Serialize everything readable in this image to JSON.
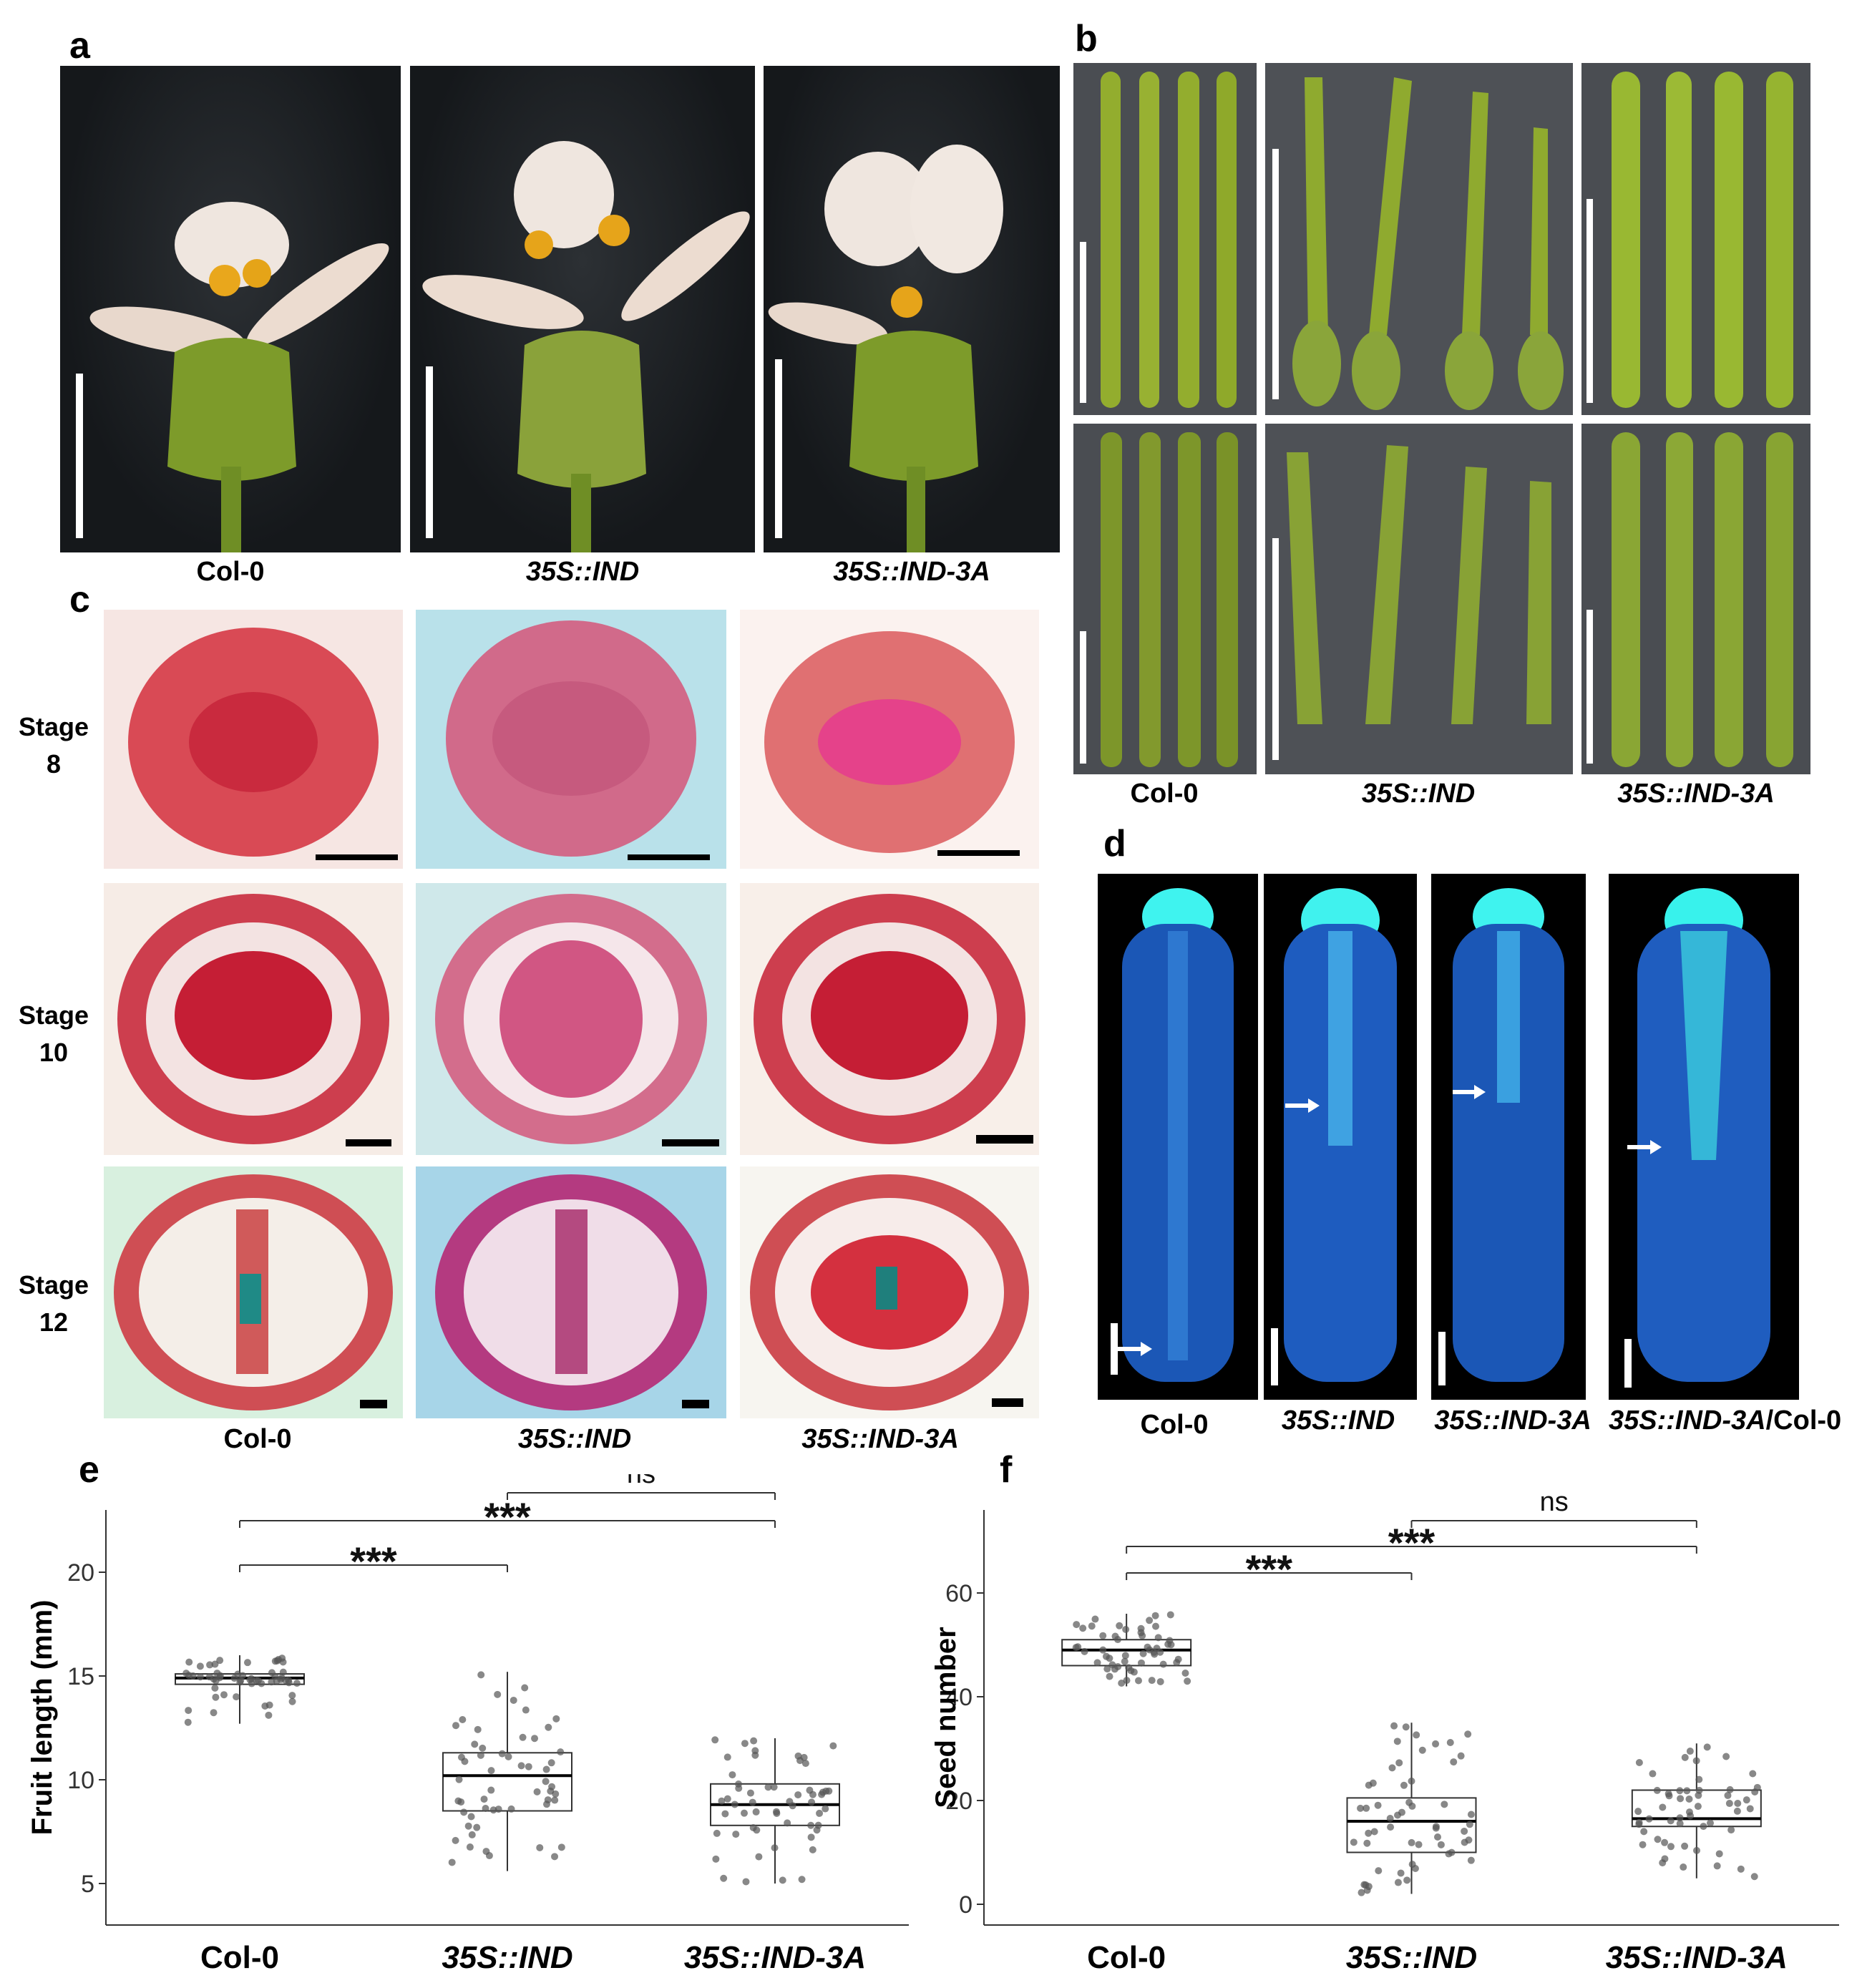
{
  "panels": {
    "a": {
      "letter": "a",
      "labels": [
        "Col-0",
        "35S::IND",
        "35S::IND-3A"
      ]
    },
    "b": {
      "letter": "b",
      "labels": [
        "Col-0",
        "35S::IND",
        "35S::IND-3A"
      ]
    },
    "c": {
      "letter": "c",
      "rows": [
        {
          "word": "Stage",
          "num": "8"
        },
        {
          "word": "Stage",
          "num": "10"
        },
        {
          "word": "Stage",
          "num": "12"
        }
      ],
      "labels": [
        "Col-0",
        "35S::IND",
        "35S::IND-3A"
      ]
    },
    "d": {
      "letter": "d",
      "labels": [
        "Col-0",
        "35S::IND",
        "35S::IND-3A"
      ],
      "label_cross_a": "35S::IND-3A",
      "label_cross_b": "/Col-0"
    },
    "e": {
      "letter": "e"
    },
    "f": {
      "letter": "f"
    }
  },
  "chart_data": [
    {
      "panel": "e",
      "type": "box",
      "categories": [
        "Col-0",
        "35S::IND",
        "35S::IND-3A"
      ],
      "ylabel": "Fruit length (mm)",
      "yticks": [
        5,
        10,
        15,
        20
      ],
      "ylim": [
        3,
        23
      ],
      "boxes": [
        {
          "q1": 14.6,
          "median": 14.9,
          "q3": 15.1,
          "whisker_low": 12.7,
          "whisker_high": 16.0
        },
        {
          "q1": 8.5,
          "median": 10.2,
          "q3": 11.3,
          "whisker_low": 5.6,
          "whisker_high": 15.2
        },
        {
          "q1": 7.8,
          "median": 8.8,
          "q3": 9.8,
          "whisker_low": 5.0,
          "whisker_high": 12.0
        }
      ],
      "significance": [
        {
          "from": 0,
          "to": 1,
          "label": "***"
        },
        {
          "from": 0,
          "to": 2,
          "label": "***"
        },
        {
          "from": 1,
          "to": 2,
          "label": "ns"
        }
      ]
    },
    {
      "panel": "f",
      "type": "box",
      "categories": [
        "Col-0",
        "35S::IND",
        "35S::IND-3A"
      ],
      "ylabel": "Seed number",
      "yticks": [
        0,
        20,
        40,
        60
      ],
      "ylim": [
        -4,
        76
      ],
      "boxes": [
        {
          "q1": 46,
          "median": 49,
          "q3": 51,
          "whisker_low": 42,
          "whisker_high": 56
        },
        {
          "q1": 10,
          "median": 16,
          "q3": 20.5,
          "whisker_low": 2,
          "whisker_high": 35
        },
        {
          "q1": 15,
          "median": 16.5,
          "q3": 22,
          "whisker_low": 5,
          "whisker_high": 31
        }
      ],
      "significance": [
        {
          "from": 0,
          "to": 1,
          "label": "***"
        },
        {
          "from": 0,
          "to": 2,
          "label": "***"
        },
        {
          "from": 1,
          "to": 2,
          "label": "ns"
        }
      ]
    }
  ]
}
